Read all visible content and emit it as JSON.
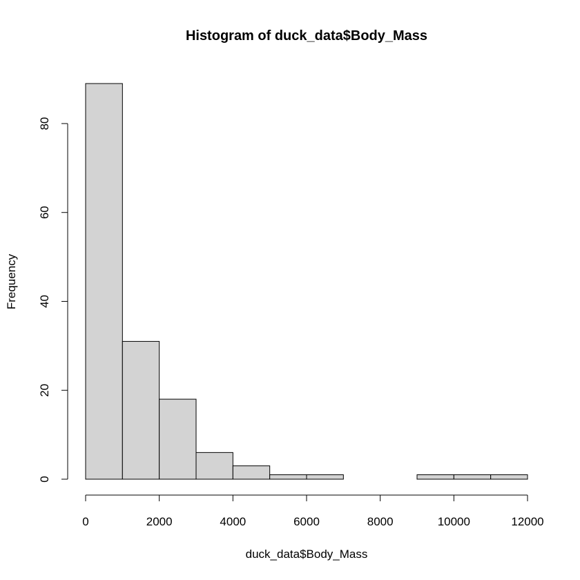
{
  "chart_data": {
    "type": "bar",
    "title": "Histogram of duck_data$Body_Mass",
    "xlabel": "duck_data$Body_Mass",
    "ylabel": "Frequency",
    "bins": [
      {
        "start": 0,
        "end": 1000,
        "count": 89
      },
      {
        "start": 1000,
        "end": 2000,
        "count": 31
      },
      {
        "start": 2000,
        "end": 3000,
        "count": 18
      },
      {
        "start": 3000,
        "end": 4000,
        "count": 6
      },
      {
        "start": 4000,
        "end": 5000,
        "count": 3
      },
      {
        "start": 5000,
        "end": 6000,
        "count": 1
      },
      {
        "start": 6000,
        "end": 7000,
        "count": 1
      },
      {
        "start": 7000,
        "end": 8000,
        "count": 0
      },
      {
        "start": 8000,
        "end": 9000,
        "count": 0
      },
      {
        "start": 9000,
        "end": 10000,
        "count": 1
      },
      {
        "start": 10000,
        "end": 11000,
        "count": 1
      },
      {
        "start": 11000,
        "end": 12000,
        "count": 1
      }
    ],
    "xlim": [
      0,
      12000
    ],
    "ylim": [
      0,
      89
    ],
    "x_ticks": [
      0,
      2000,
      4000,
      6000,
      8000,
      10000,
      12000
    ],
    "y_ticks": [
      0,
      20,
      40,
      60,
      80
    ],
    "grid": false,
    "colors": {
      "bar_fill": "#d3d3d3",
      "bar_stroke": "#000000"
    }
  }
}
